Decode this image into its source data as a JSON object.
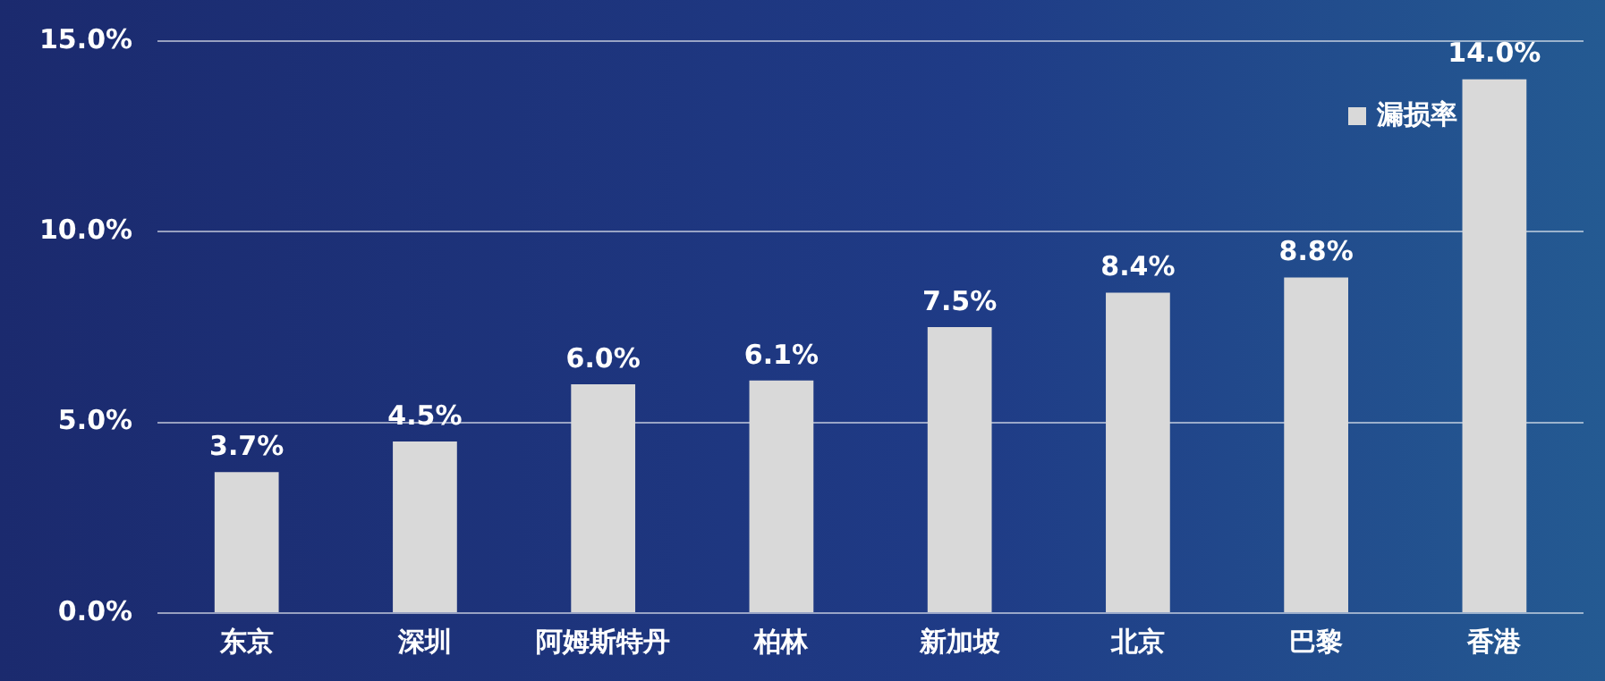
{
  "chart_data": {
    "type": "bar",
    "categories": [
      "东京",
      "深圳",
      "阿姆斯特丹",
      "柏林",
      "新加坡",
      "北京",
      "巴黎",
      "香港"
    ],
    "series": [
      {
        "name": "漏损率",
        "color": "#d9d9d9",
        "values": [
          3.7,
          4.5,
          6.0,
          6.1,
          7.5,
          8.4,
          8.8,
          14.0
        ],
        "value_labels": [
          "3.7%",
          "4.5%",
          "6.0%",
          "6.1%",
          "7.5%",
          "8.4%",
          "8.8%",
          "14.0%"
        ]
      }
    ],
    "ylim": [
      0,
      15
    ],
    "yticks": [
      {
        "value": 0,
        "label": "0.0%"
      },
      {
        "value": 5,
        "label": "5.0%"
      },
      {
        "value": 10,
        "label": "10.0%"
      },
      {
        "value": 15,
        "label": "15.0%"
      }
    ],
    "grid": "y",
    "legend": "top right"
  }
}
